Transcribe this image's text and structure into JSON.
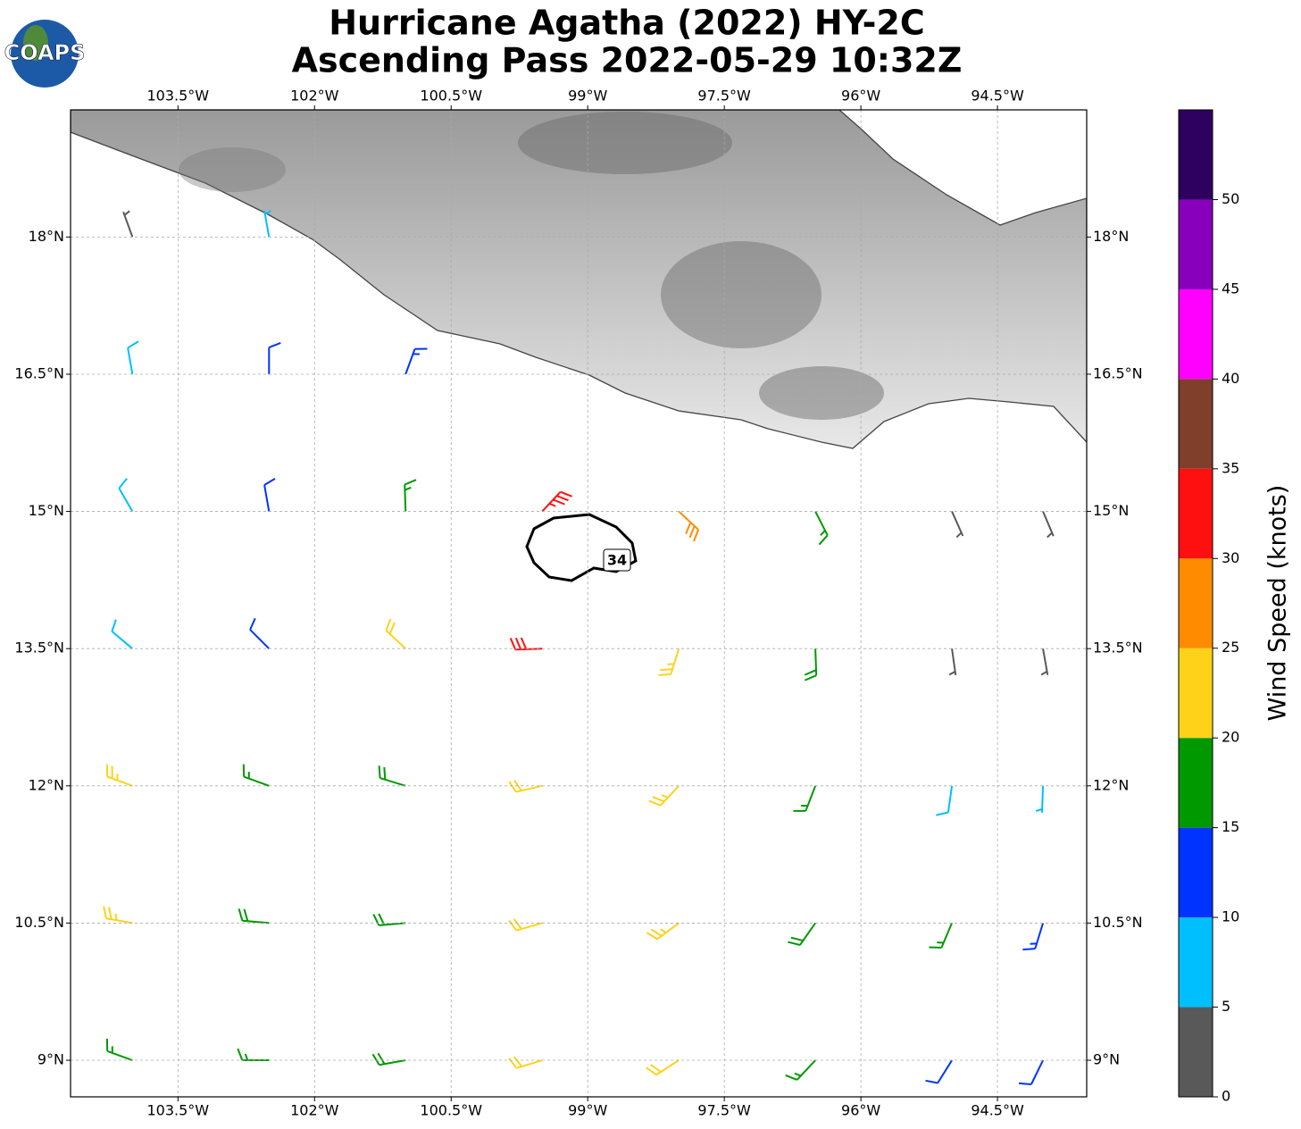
{
  "chart_data": {
    "type": "barbs",
    "title": [
      "Hurricane Agatha (2022) HY-2C",
      "Ascending Pass 2022-05-29 10:32Z"
    ],
    "logo": "COAPS",
    "xlim": [
      -104.68,
      -93.52
    ],
    "ylim": [
      8.6,
      19.39
    ],
    "grid": true,
    "xticks": [
      {
        "value": -103.5,
        "label": "103.5°W"
      },
      {
        "value": -102,
        "label": "102°W"
      },
      {
        "value": -100.5,
        "label": "100.5°W"
      },
      {
        "value": -99,
        "label": "99°W"
      },
      {
        "value": -97.5,
        "label": "97.5°W"
      },
      {
        "value": -96,
        "label": "96°W"
      },
      {
        "value": -94.5,
        "label": "94.5°W"
      }
    ],
    "yticks": [
      {
        "value": 9,
        "label": "9°N"
      },
      {
        "value": 10.5,
        "label": "10.5°N"
      },
      {
        "value": 12,
        "label": "12°N"
      },
      {
        "value": 13.5,
        "label": "13.5°N"
      },
      {
        "value": 15,
        "label": "15°N"
      },
      {
        "value": 16.5,
        "label": "16.5°N"
      },
      {
        "value": 18,
        "label": "18°N"
      }
    ],
    "barbs": {
      "lon": [
        -104,
        -102.5,
        -101,
        -99.5,
        -98,
        -96.5,
        -95,
        -94,
        -104,
        -102.5,
        -101,
        -99.5,
        -98,
        -96.5,
        -95,
        -94,
        -104,
        -102.5,
        -101,
        -99.5,
        -98,
        -96.5,
        -95,
        -94,
        -104,
        -102.5,
        -101,
        -99.5,
        -98,
        -96.5,
        -95,
        -94,
        -104,
        -102.5,
        -101,
        -99.5,
        -98,
        -96.5,
        -95,
        -94,
        -104,
        -102.5,
        -101,
        -104,
        -102.5
      ],
      "lat": [
        9,
        9,
        9,
        9,
        9,
        9,
        9,
        9,
        10.5,
        10.5,
        10.5,
        10.5,
        10.5,
        10.5,
        10.5,
        10.5,
        12,
        12,
        12,
        12,
        12,
        12,
        12,
        12,
        13.5,
        13.5,
        13.5,
        13.5,
        13.5,
        13.5,
        13.5,
        13.5,
        15,
        15,
        15,
        15,
        15,
        15,
        15,
        15,
        16.5,
        16.5,
        16.5,
        18,
        18
      ],
      "speed": [
        17,
        17,
        18,
        22,
        21,
        17,
        12,
        12,
        24,
        18,
        19,
        22,
        23,
        18,
        16,
        13,
        23,
        16,
        19,
        22,
        23,
        17,
        8,
        7,
        8,
        12,
        21,
        30,
        24,
        18,
        3,
        4,
        8,
        12,
        17,
        34,
        28,
        17,
        4,
        3,
        8,
        12,
        14,
        4,
        7
      ],
      "direction": [
        290,
        270,
        260,
        253,
        237,
        223,
        212,
        206,
        280,
        275,
        265,
        254,
        233,
        215,
        203,
        197,
        290,
        290,
        287,
        257,
        223,
        201,
        188,
        182,
        310,
        315,
        313,
        268,
        197,
        178,
        172,
        170,
        330,
        350,
        358,
        43,
        133,
        153,
        156,
        157,
        350,
        360,
        20,
        340,
        350
      ]
    },
    "contour": {
      "level": 34,
      "color": "#000000"
    },
    "colorbar": {
      "label": "Wind Speed (knots)",
      "bins": [
        0,
        5,
        10,
        15,
        20,
        25,
        30,
        35,
        40,
        45,
        50,
        55
      ],
      "colors": [
        "#595959",
        "#00bfff",
        "#0033ff",
        "#009900",
        "#ffd21a",
        "#ff8c00",
        "#ff1010",
        "#7f3f2a",
        "#ff00ff",
        "#8800bb",
        "#2e0060"
      ],
      "ticks": [
        0,
        5,
        10,
        15,
        20,
        25,
        30,
        35,
        40,
        45,
        50
      ]
    }
  }
}
